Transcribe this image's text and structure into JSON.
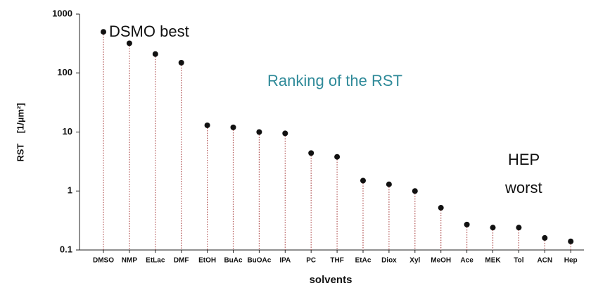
{
  "chart_data": {
    "type": "dot",
    "categories": [
      "DMSO",
      "NMP",
      "EtLac",
      "DMF",
      "EtOH",
      "BuAc",
      "BuOAc",
      "IPA",
      "PC",
      "THF",
      "EtAc",
      "Diox",
      "Xyl",
      "MeOH",
      "Ace",
      "MEK",
      "Tol",
      "ACN",
      "Hep"
    ],
    "values": [
      500,
      320,
      210,
      150,
      13,
      12,
      10,
      9.5,
      4.4,
      3.8,
      1.5,
      1.3,
      1.0,
      0.52,
      0.27,
      0.24,
      0.24,
      0.16,
      0.14
    ],
    "color": "#111111",
    "stem_color": "#b05050",
    "ylog": true,
    "ylim": [
      0.1,
      1000
    ],
    "yticks": [
      0.1,
      1,
      10,
      100,
      1000
    ],
    "y_label": "RST    [1/µm²]",
    "x_label": "solvents",
    "annotations": [
      "DSMO best",
      "Ranking of the RST",
      "HEP",
      "worst"
    ]
  }
}
